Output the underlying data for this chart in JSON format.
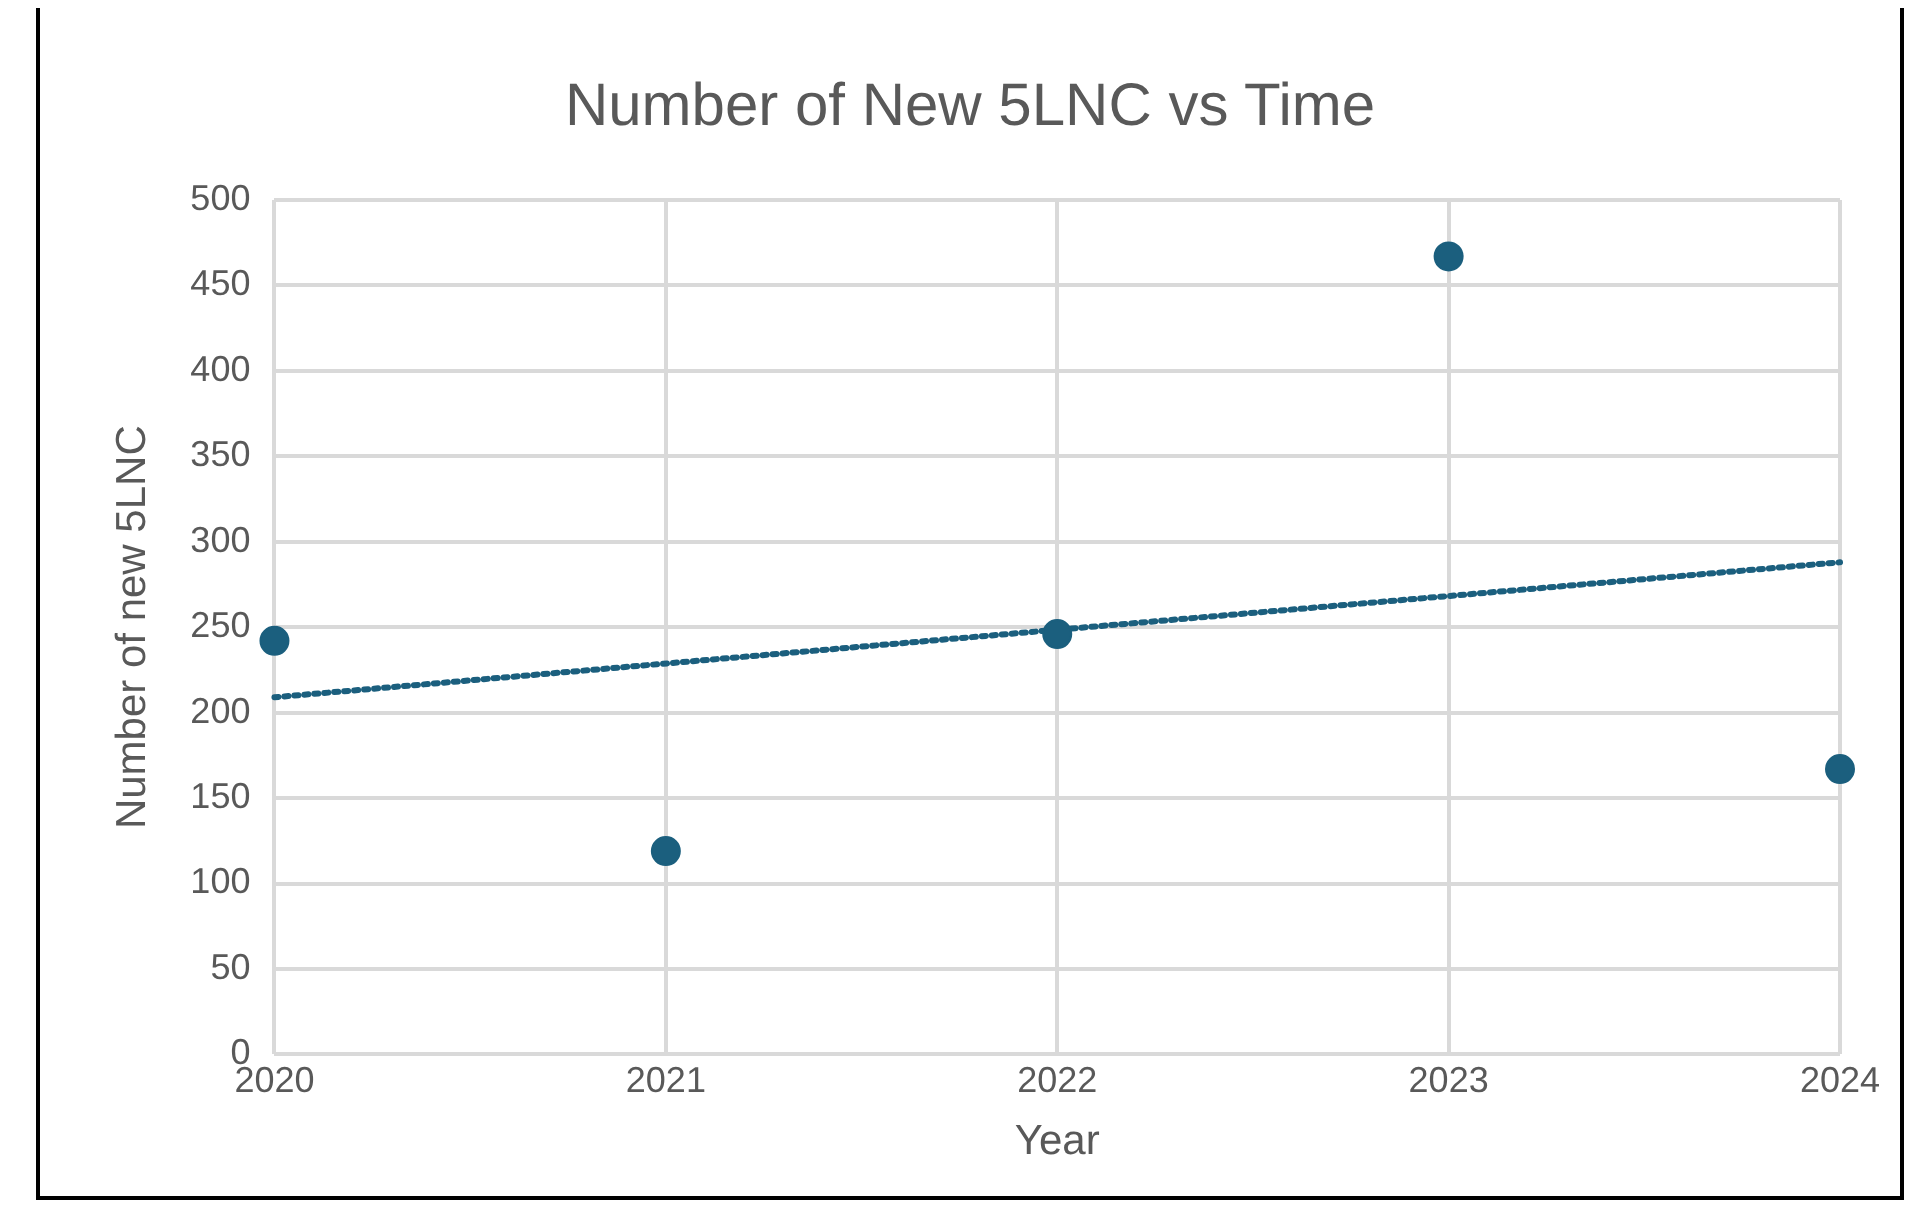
{
  "chart_data": {
    "type": "scatter",
    "title": "Number of New 5LNC vs Time",
    "xlabel": "Year",
    "ylabel": "Number of new 5LNC",
    "x": [
      2020,
      2021,
      2022,
      2023,
      2024
    ],
    "series": [
      {
        "color": "#1b5f7e",
        "values": [
          242,
          119,
          246,
          467,
          167
        ],
        "marker": "circle"
      },
      {
        "type": "line",
        "color": "#1b5f7e",
        "x": [
          2020,
          2024
        ],
        "values": [
          209,
          288
        ],
        "line_style": "dotted",
        "marker": "none"
      }
    ],
    "xlim": [
      2020,
      2024
    ],
    "xticks": [
      2020,
      2021,
      2022,
      2023,
      2024
    ],
    "ylim": [
      0,
      500
    ],
    "yticks": [
      0,
      50,
      100,
      150,
      200,
      250,
      300,
      350,
      400,
      450,
      500
    ],
    "grid": true,
    "legend": false
  }
}
